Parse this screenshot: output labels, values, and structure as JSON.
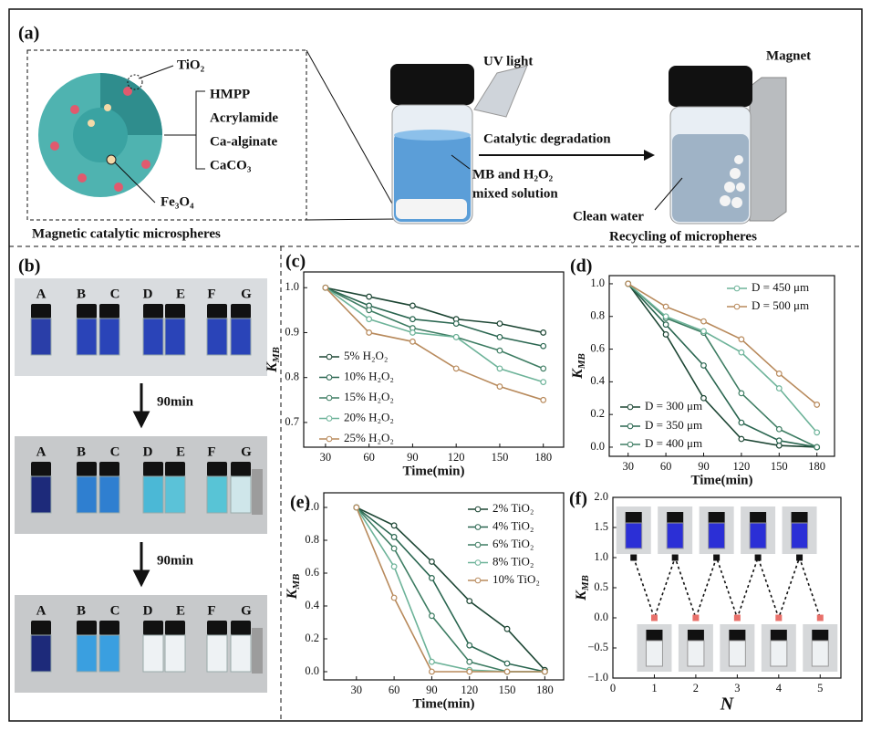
{
  "panel_a": {
    "label": "(a)",
    "tio2": "TiO₂",
    "components": [
      "HMPP",
      "Acrylamide",
      "Ca-alginate",
      "CaCO₃"
    ],
    "fe3o4": "Fe₃O₄",
    "caption_left": "Magnetic catalytic microspheres",
    "uv": "UV  light",
    "solution": [
      "MB and H₂O₂",
      "mixed solution"
    ],
    "process": "Catalytic degradation",
    "magnet": "Magnet",
    "clean_water": "Clean water",
    "caption_right": "Recycling of micropheres"
  },
  "panel_b": {
    "label": "(b)",
    "rows": [
      [
        "A",
        "B",
        "C",
        "D",
        "E",
        "F",
        "G"
      ],
      [
        "A",
        "B",
        "C",
        "D",
        "E",
        "F",
        "G"
      ],
      [
        "A",
        "B",
        "C",
        "D",
        "E",
        "F",
        "G"
      ]
    ],
    "step_labels": [
      "90min",
      "90min"
    ]
  },
  "chart_data": [
    {
      "type": "line",
      "label": "(c)",
      "x_label": "Time(min)",
      "y_label": "K",
      "y_label_sub": "MB",
      "x": [
        30,
        60,
        90,
        120,
        150,
        180
      ],
      "xlim": [
        15,
        194
      ],
      "ylim": [
        0.645,
        1.035
      ],
      "xticks": [
        30,
        60,
        90,
        120,
        150,
        180
      ],
      "yticks": [
        0.7,
        0.8,
        0.9,
        {
          "value": 1.0,
          "label": "1.0"
        }
      ],
      "series": [
        {
          "name": "5% H₂O₂",
          "color": "#1d4634",
          "values": [
            1.0,
            0.98,
            0.96,
            0.93,
            0.92,
            0.9
          ]
        },
        {
          "name": "10% H₂O₂",
          "color": "#2a6650",
          "values": [
            1.0,
            0.96,
            0.93,
            0.92,
            0.89,
            0.87
          ]
        },
        {
          "name": "15% H₂O₂",
          "color": "#3e7d63",
          "values": [
            1.0,
            0.95,
            0.91,
            0.89,
            0.86,
            0.82
          ]
        },
        {
          "name": "20% H₂O₂",
          "color": "#6db399",
          "values": [
            1.0,
            0.93,
            0.9,
            0.89,
            0.82,
            0.79
          ]
        },
        {
          "name": "25% H₂O₂",
          "color": "#b88a5c",
          "values": [
            1.0,
            0.9,
            0.88,
            0.82,
            0.78,
            0.75
          ]
        }
      ]
    },
    {
      "type": "line",
      "label": "(d)",
      "x_label": "Time(min)",
      "y_label": "K",
      "y_label_sub": "MB",
      "x": [
        30,
        60,
        90,
        120,
        150,
        180
      ],
      "xlim": [
        15,
        194
      ],
      "ylim": [
        -0.056,
        1.05
      ],
      "xticks": [
        30,
        60,
        90,
        120,
        150,
        180
      ],
      "yticks": [
        {
          "value": 0,
          "label": "0.0"
        },
        0.2,
        0.4,
        0.6,
        0.8,
        {
          "value": 1.0,
          "label": "1.0"
        }
      ],
      "series": [
        {
          "name": "D = 300 μm",
          "color": "#1d4634",
          "values": [
            1.0,
            0.69,
            0.3,
            0.05,
            0.01,
            0.0
          ]
        },
        {
          "name": "D = 350 μm",
          "color": "#2a6650",
          "values": [
            1.0,
            0.75,
            0.5,
            0.15,
            0.04,
            0.0
          ]
        },
        {
          "name": "D = 400 μm",
          "color": "#3e7d63",
          "values": [
            1.0,
            0.79,
            0.7,
            0.33,
            0.11,
            0.0
          ]
        },
        {
          "name": "D = 450 μm",
          "color": "#6db399",
          "values": [
            1.0,
            0.8,
            0.71,
            0.58,
            0.36,
            0.09
          ]
        },
        {
          "name": "D = 500 μm",
          "color": "#b88a5c",
          "values": [
            1.0,
            0.86,
            0.77,
            0.66,
            0.45,
            0.26
          ]
        }
      ]
    },
    {
      "type": "line",
      "label": "(e)",
      "x_label": "Time(min)",
      "y_label": "K",
      "y_label_sub": "MB",
      "x": [
        30,
        60,
        90,
        120,
        150,
        180
      ],
      "xlim": [
        4,
        195
      ],
      "ylim": [
        -0.05,
        1.089
      ],
      "xticks": [
        30,
        60,
        90,
        120,
        150,
        180
      ],
      "yticks": [
        {
          "value": 0,
          "label": "0.0"
        },
        0.2,
        0.4,
        0.6,
        0.8,
        {
          "value": 1.0,
          "label": "1.0"
        }
      ],
      "series": [
        {
          "name": "2% TiO₂",
          "color": "#1d4634",
          "values": [
            1.0,
            0.89,
            0.67,
            0.43,
            0.26,
            0.01
          ]
        },
        {
          "name": "4% TiO₂",
          "color": "#2a6650",
          "values": [
            1.0,
            0.82,
            0.57,
            0.16,
            0.05,
            0.0
          ]
        },
        {
          "name": "6% TiO₂",
          "color": "#3e7d63",
          "values": [
            1.0,
            0.75,
            0.34,
            0.06,
            0.0,
            0.0
          ]
        },
        {
          "name": "8% TiO₂",
          "color": "#6db399",
          "values": [
            1.0,
            0.64,
            0.06,
            0.01,
            0.0,
            0.0
          ]
        },
        {
          "name": "10% TiO₂",
          "color": "#b88a5c",
          "values": [
            1.0,
            0.45,
            0.0,
            0.0,
            0.0,
            0.0
          ]
        }
      ]
    },
    {
      "type": "scatter",
      "label": "(f)",
      "x_label": "N",
      "y_label": "K",
      "y_label_sub": "MB",
      "x": [
        0.5,
        1,
        1.5,
        2,
        2.5,
        3,
        3.5,
        4,
        4.5,
        5
      ],
      "xlim": [
        0,
        5.5
      ],
      "ylim": [
        -1,
        2
      ],
      "xticks": [
        0,
        1,
        2,
        3,
        4,
        5
      ],
      "yticks": [
        {
          "value": -1,
          "label": "−1.0"
        },
        {
          "value": -0.5,
          "label": "−0.5"
        },
        {
          "value": 0,
          "label": "0.0"
        },
        0.5,
        {
          "value": 1,
          "label": "1.0"
        },
        1.5,
        {
          "value": 2,
          "label": "2.0"
        }
      ],
      "line_style": "dashed",
      "line_color": "#111",
      "values": [
        1,
        0,
        1,
        0,
        1,
        0,
        1,
        0,
        1,
        0
      ],
      "marker_colors": [
        "#111",
        "#e8706a",
        "#111",
        "#e8706a",
        "#111",
        "#e8706a",
        "#111",
        "#e8706a",
        "#111",
        "#e8706a"
      ]
    }
  ]
}
